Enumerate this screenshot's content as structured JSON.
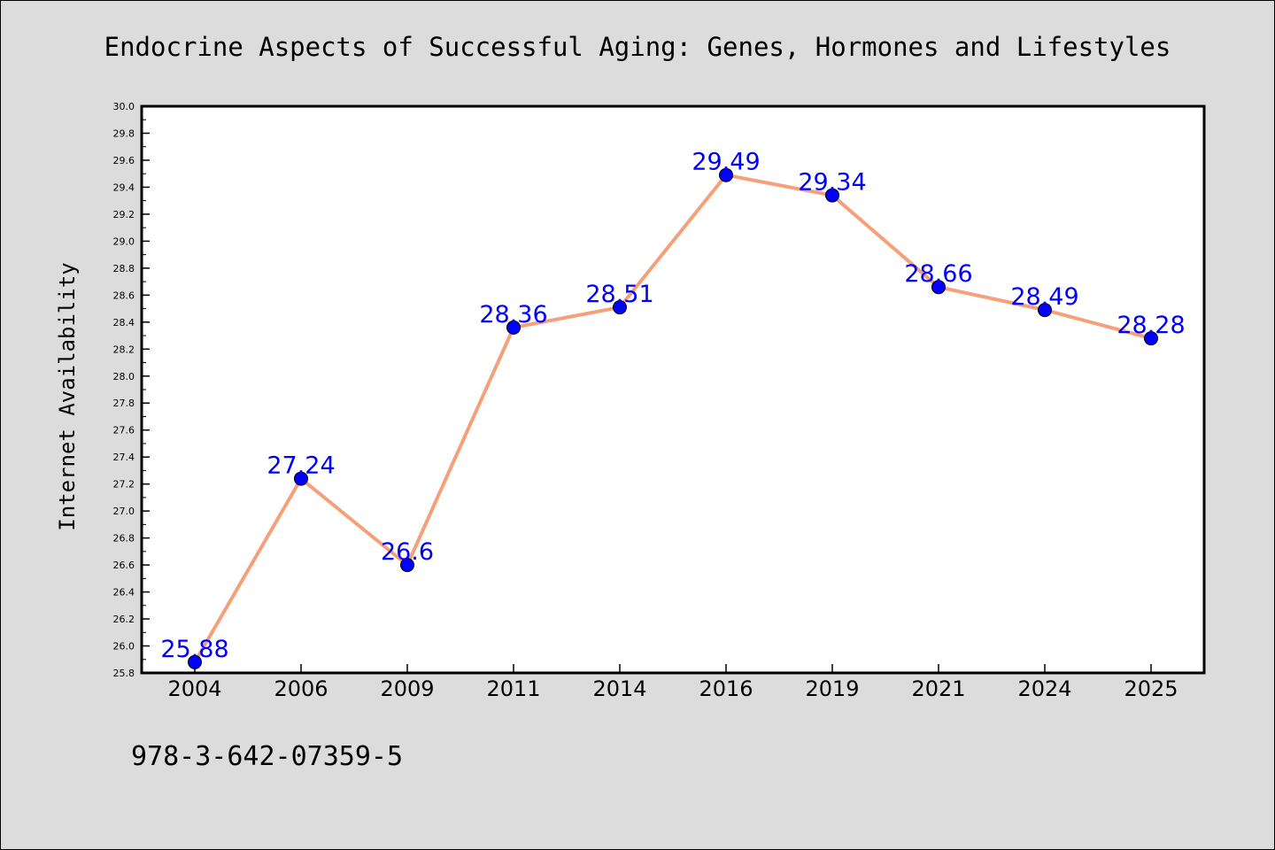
{
  "chart_data": {
    "type": "line",
    "title": "Endocrine Aspects of Successful Aging: Genes, Hormones and Lifestyles",
    "xlabel": "",
    "ylabel": "Internet Availability",
    "categories": [
      "2004",
      "2006",
      "2009",
      "2011",
      "2014",
      "2016",
      "2019",
      "2021",
      "2024",
      "2025"
    ],
    "series": [
      {
        "values": [
          25.88,
          27.24,
          26.6,
          28.36,
          28.51,
          29.49,
          29.34,
          28.66,
          28.49,
          28.28
        ],
        "data_labels": [
          "25.88",
          "27.24",
          "26.6",
          "28.36",
          "28.51",
          "29.49",
          "29.34",
          "28.66",
          "28.49",
          "28.28"
        ],
        "line_color": "#f4a07a",
        "marker_color": "#0000ff"
      }
    ],
    "ylim": [
      25.8,
      30.0
    ],
    "yticks": [
      "25.8",
      "26.0",
      "26.2",
      "26.4",
      "26.6",
      "26.8",
      "27.0",
      "27.2",
      "27.4",
      "27.6",
      "27.8",
      "28.0",
      "28.2",
      "28.4",
      "28.6",
      "28.8",
      "29.0",
      "29.2",
      "29.4",
      "29.6",
      "29.8",
      "30.0"
    ],
    "grid": false,
    "legend": "none",
    "annotation": "978-3-642-07359-5",
    "colors": {
      "background": "#dcdcdc",
      "plot_area": "#ffffff",
      "label_text": "#0000ff"
    }
  }
}
